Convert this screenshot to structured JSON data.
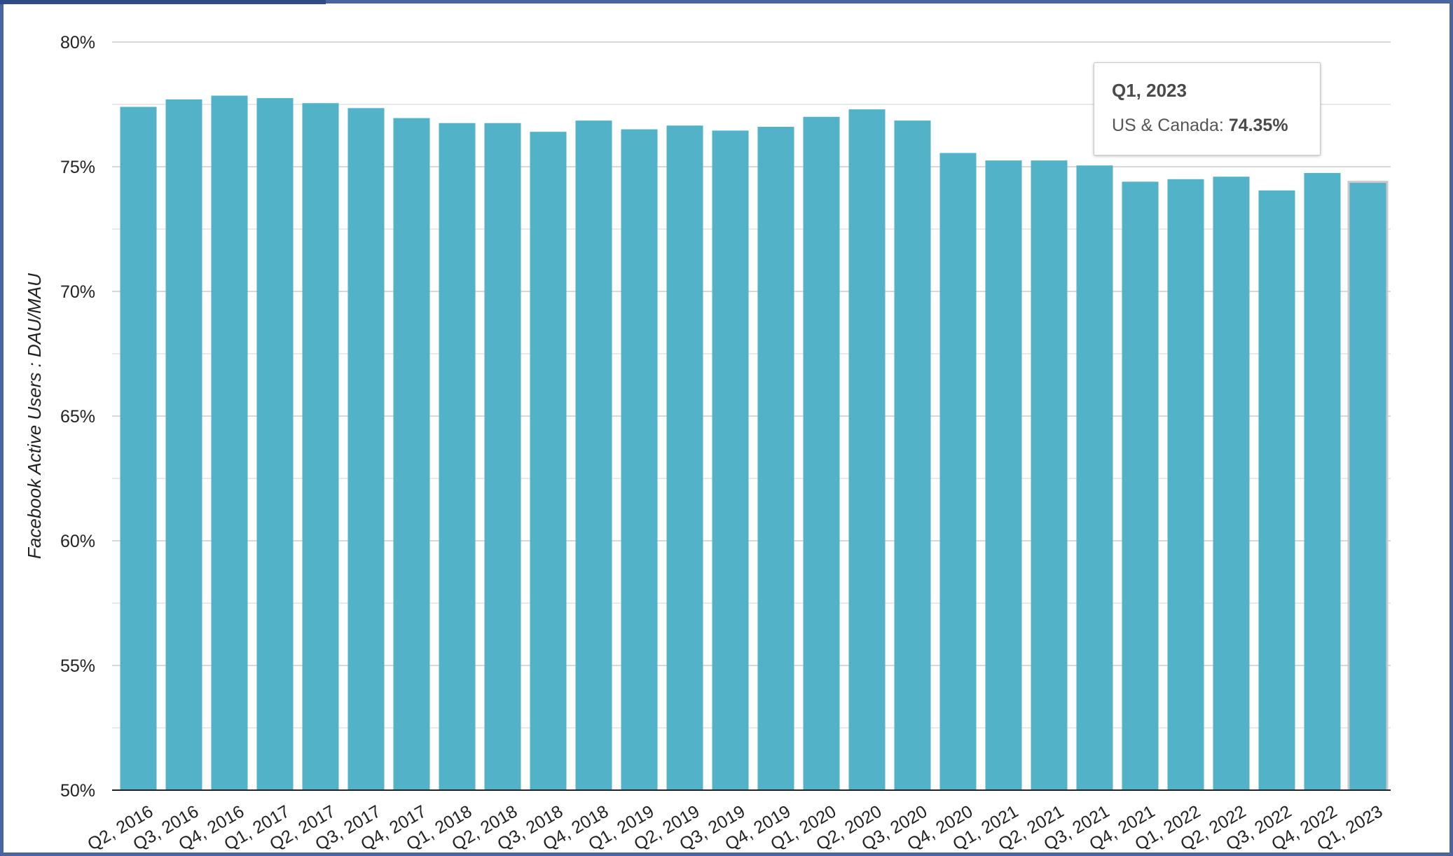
{
  "chart_data": {
    "type": "bar",
    "ylabel": "Facebook Active Users : DAU/MAU",
    "xlabel": "",
    "ylim": [
      50,
      80
    ],
    "yticks": [
      "50%",
      "55%",
      "60%",
      "65%",
      "70%",
      "75%",
      "80%"
    ],
    "grid": true,
    "bar_color": "#52b2c8",
    "categories": [
      "Q2, 2016",
      "Q3, 2016",
      "Q4, 2016",
      "Q1, 2017",
      "Q2, 2017",
      "Q3, 2017",
      "Q4, 2017",
      "Q1, 2018",
      "Q2, 2018",
      "Q3, 2018",
      "Q4, 2018",
      "Q1, 2019",
      "Q2, 2019",
      "Q3, 2019",
      "Q4, 2019",
      "Q1, 2020",
      "Q2, 2020",
      "Q3, 2020",
      "Q4, 2020",
      "Q1, 2021",
      "Q2, 2021",
      "Q3, 2021",
      "Q4, 2021",
      "Q1, 2022",
      "Q2, 2022",
      "Q3, 2022",
      "Q4, 2022",
      "Q1, 2023"
    ],
    "series": [
      {
        "name": "US & Canada",
        "values": [
          77.4,
          77.7,
          77.85,
          77.75,
          77.55,
          77.35,
          76.95,
          76.75,
          76.75,
          76.4,
          76.85,
          76.5,
          76.65,
          76.45,
          76.6,
          77.0,
          77.3,
          76.85,
          75.55,
          75.25,
          75.25,
          75.05,
          74.4,
          74.5,
          74.6,
          74.05,
          74.75,
          74.35
        ]
      }
    ],
    "highlighted_index": 27
  },
  "tooltip": {
    "title": "Q1, 2023",
    "series_label": "US & Canada: ",
    "value": "74.35%"
  }
}
